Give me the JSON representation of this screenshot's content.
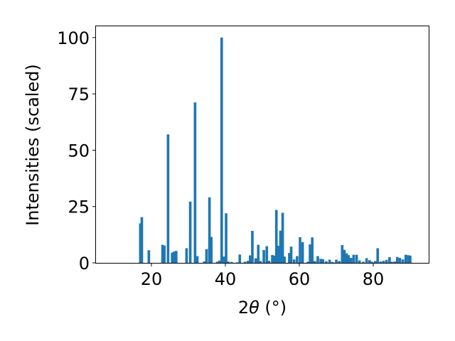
{
  "chart_data": {
    "type": "bar",
    "title": "",
    "xlabel_prefix": "2",
    "xlabel_symbol": "θ",
    "xlabel_suffix": " (°)",
    "ylabel": "Intensities (scaled)",
    "xlim": [
      5,
      95
    ],
    "ylim": [
      0,
      105
    ],
    "xticks": [
      20,
      40,
      60,
      80
    ],
    "yticks": [
      0,
      25,
      50,
      75,
      100
    ],
    "grid": false,
    "bar_color": "#1f77b4",
    "bar_width": 0.7,
    "series": [
      {
        "x": [
          17.0,
          17.4,
          19.3,
          23.0,
          23.5,
          24.5,
          25.6,
          26.1,
          26.7,
          29.5,
          30.5,
          31.8,
          32.4,
          34.3,
          34.9,
          35.7,
          36.2,
          37.8,
          38.4,
          39.0,
          39.6,
          40.2,
          40.8,
          41.7,
          43.2,
          43.9,
          45.3,
          46.1,
          46.7,
          47.3,
          48.2,
          48.9,
          49.5,
          50.4,
          51.2,
          51.8,
          52.7,
          53.2,
          53.8,
          54.4,
          54.9,
          55.5,
          56.0,
          57.3,
          57.8,
          58.6,
          59.4,
          60.2,
          60.9,
          62.3,
          62.9,
          63.5,
          64.2,
          65.0,
          65.8,
          66.4,
          67.3,
          68.2,
          69.0,
          70.0,
          70.8,
          71.6,
          72.2,
          72.8,
          73.3,
          74.0,
          74.7,
          75.5,
          76.3,
          77.3,
          78.2,
          79.0,
          79.6,
          80.5,
          81.2,
          82.0,
          82.8,
          83.6,
          84.4,
          85.0,
          85.8,
          86.5,
          87.2,
          88.0,
          88.8,
          89.5,
          90.0
        ],
        "values": [
          17.5,
          20.3,
          5.6,
          8.0,
          7.7,
          57.0,
          4.5,
          5.0,
          5.3,
          6.5,
          27.2,
          71.2,
          3.0,
          0.6,
          6.1,
          29.1,
          11.5,
          0.5,
          1.0,
          100.0,
          2.8,
          22.0,
          0.6,
          0.4,
          0.2,
          3.7,
          0.5,
          0.9,
          3.3,
          14.2,
          2.0,
          8.0,
          0.8,
          5.7,
          7.4,
          0.9,
          3.5,
          3.2,
          23.5,
          7.6,
          14.3,
          22.2,
          2.8,
          4.4,
          7.2,
          1.5,
          3.0,
          11.4,
          9.2,
          0.5,
          8.2,
          11.3,
          0.8,
          3.0,
          1.8,
          1.6,
          0.7,
          1.4,
          0.4,
          1.4,
          0.8,
          7.9,
          5.8,
          4.2,
          3.4,
          2.2,
          3.6,
          3.6,
          1.1,
          0.5,
          2.1,
          1.2,
          0.5,
          0.8,
          6.5,
          0.6,
          0.9,
          1.3,
          2.5,
          0.5,
          0.6,
          2.6,
          2.2,
          1.5,
          3.6,
          3.4,
          3.2
        ]
      }
    ]
  }
}
